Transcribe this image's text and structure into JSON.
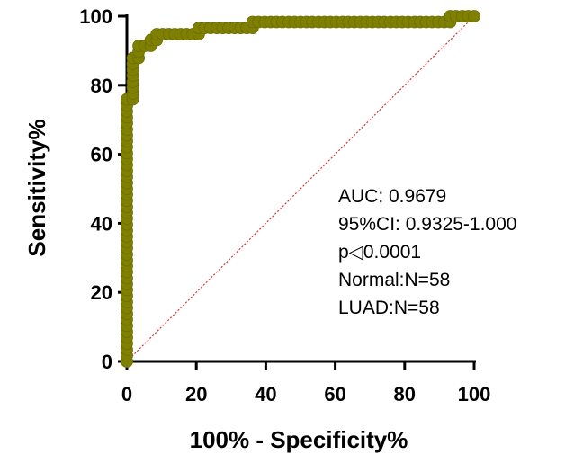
{
  "chart_data": {
    "type": "line",
    "title": "",
    "xlabel": "100% - Specificity%",
    "ylabel": "Sensitivity%",
    "xlim": [
      0,
      100
    ],
    "ylim": [
      0,
      100
    ],
    "xticks": [
      "0",
      "20",
      "40",
      "60",
      "80",
      "100"
    ],
    "yticks": [
      "0",
      "20",
      "40",
      "60",
      "80",
      "100"
    ],
    "grid": false,
    "series": [
      {
        "color": "#808000",
        "points": [
          [
            0,
            0
          ],
          [
            0,
            1.7
          ],
          [
            0,
            3.4
          ],
          [
            0,
            5.2
          ],
          [
            0,
            6.9
          ],
          [
            0,
            8.6
          ],
          [
            0,
            10.3
          ],
          [
            0,
            12.1
          ],
          [
            0,
            13.8
          ],
          [
            0,
            15.5
          ],
          [
            0,
            17.2
          ],
          [
            0,
            19.0
          ],
          [
            0,
            20.7
          ],
          [
            0,
            22.4
          ],
          [
            0,
            24.1
          ],
          [
            0,
            25.9
          ],
          [
            0,
            27.6
          ],
          [
            0,
            29.3
          ],
          [
            0,
            31.0
          ],
          [
            0,
            32.8
          ],
          [
            0,
            34.5
          ],
          [
            0,
            36.2
          ],
          [
            0,
            37.9
          ],
          [
            0,
            39.7
          ],
          [
            0,
            41.4
          ],
          [
            0,
            43.1
          ],
          [
            0,
            44.8
          ],
          [
            0,
            46.6
          ],
          [
            0,
            48.3
          ],
          [
            0,
            50.0
          ],
          [
            0,
            51.7
          ],
          [
            0,
            53.4
          ],
          [
            0,
            55.2
          ],
          [
            0,
            56.9
          ],
          [
            0,
            58.6
          ],
          [
            0,
            60.3
          ],
          [
            0,
            62.1
          ],
          [
            0,
            63.8
          ],
          [
            0,
            65.5
          ],
          [
            0,
            67.2
          ],
          [
            0,
            69.0
          ],
          [
            0,
            70.7
          ],
          [
            0,
            72.4
          ],
          [
            0,
            74.1
          ],
          [
            0,
            75.9
          ],
          [
            1.7,
            75.9
          ],
          [
            1.7,
            77.6
          ],
          [
            1.7,
            79.3
          ],
          [
            1.7,
            81.0
          ],
          [
            1.7,
            82.8
          ],
          [
            1.7,
            84.5
          ],
          [
            1.7,
            86.2
          ],
          [
            1.7,
            87.9
          ],
          [
            3.4,
            87.9
          ],
          [
            3.4,
            89.7
          ],
          [
            3.4,
            91.4
          ],
          [
            5.2,
            91.4
          ],
          [
            6.9,
            91.4
          ],
          [
            6.9,
            93.1
          ],
          [
            8.6,
            93.1
          ],
          [
            8.6,
            94.8
          ],
          [
            10.3,
            94.8
          ],
          [
            12.1,
            94.8
          ],
          [
            13.8,
            94.8
          ],
          [
            15.5,
            94.8
          ],
          [
            17.2,
            94.8
          ],
          [
            19.0,
            94.8
          ],
          [
            20.7,
            94.8
          ],
          [
            20.7,
            96.6
          ],
          [
            22.4,
            96.6
          ],
          [
            24.1,
            96.6
          ],
          [
            25.9,
            96.6
          ],
          [
            27.6,
            96.6
          ],
          [
            29.3,
            96.6
          ],
          [
            31.0,
            96.6
          ],
          [
            32.8,
            96.6
          ],
          [
            34.5,
            96.6
          ],
          [
            36.2,
            96.6
          ],
          [
            36.2,
            98.3
          ],
          [
            37.9,
            98.3
          ],
          [
            39.7,
            98.3
          ],
          [
            41.4,
            98.3
          ],
          [
            43.1,
            98.3
          ],
          [
            44.8,
            98.3
          ],
          [
            46.6,
            98.3
          ],
          [
            48.3,
            98.3
          ],
          [
            50.0,
            98.3
          ],
          [
            51.7,
            98.3
          ],
          [
            53.4,
            98.3
          ],
          [
            55.2,
            98.3
          ],
          [
            56.9,
            98.3
          ],
          [
            58.6,
            98.3
          ],
          [
            60.3,
            98.3
          ],
          [
            62.1,
            98.3
          ],
          [
            63.8,
            98.3
          ],
          [
            65.5,
            98.3
          ],
          [
            67.2,
            98.3
          ],
          [
            69.0,
            98.3
          ],
          [
            70.7,
            98.3
          ],
          [
            72.4,
            98.3
          ],
          [
            74.1,
            98.3
          ],
          [
            75.9,
            98.3
          ],
          [
            77.6,
            98.3
          ],
          [
            79.3,
            98.3
          ],
          [
            81.0,
            98.3
          ],
          [
            82.8,
            98.3
          ],
          [
            84.5,
            98.3
          ],
          [
            86.2,
            98.3
          ],
          [
            87.9,
            98.3
          ],
          [
            89.7,
            98.3
          ],
          [
            91.4,
            98.3
          ],
          [
            93.1,
            98.3
          ],
          [
            93.1,
            100
          ],
          [
            94.8,
            100
          ],
          [
            96.6,
            100
          ],
          [
            98.3,
            100
          ],
          [
            100,
            100
          ]
        ]
      },
      {
        "style": "dotted",
        "color": "#e03030",
        "points": [
          [
            0,
            0
          ],
          [
            100,
            100
          ]
        ]
      }
    ],
    "annotations": [
      "AUC: 0.9679",
      "95%CI: 0.9325-1.000",
      "p◁0.0001",
      "Normal:N=58",
      "LUAD:N=58"
    ]
  }
}
